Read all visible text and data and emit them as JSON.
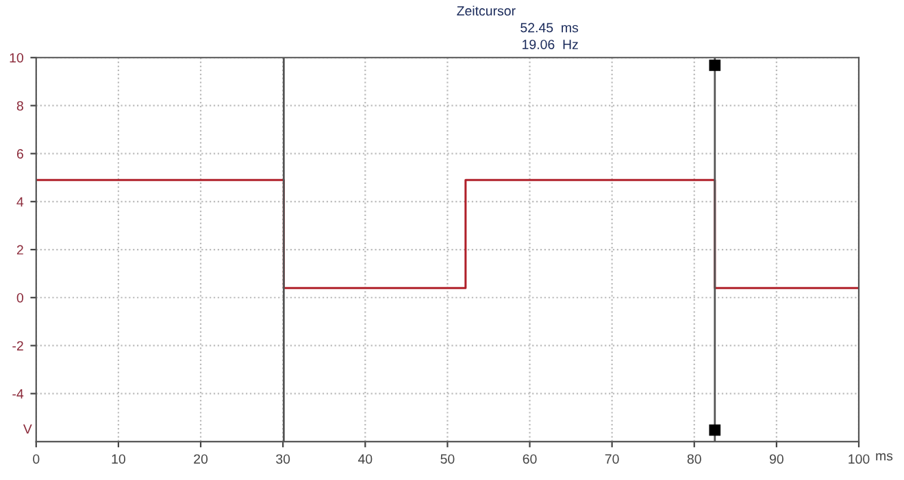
{
  "chart_data": {
    "type": "line",
    "xlabel": "ms",
    "ylabel": "V",
    "annotations": [
      "Zeitcursor",
      "52.45  ms",
      "19.06  Hz"
    ],
    "series": [
      {
        "color": "#b0202a",
        "x": [
          0,
          30.1,
          30.1,
          52.2,
          52.2,
          82.5,
          82.5,
          100
        ],
        "values": [
          4.9,
          4.9,
          0.4,
          0.4,
          4.9,
          4.9,
          0.4,
          0.4
        ]
      }
    ],
    "xlim": [
      0,
      100
    ],
    "xticks": [
      0,
      10,
      20,
      30,
      40,
      50,
      60,
      70,
      80,
      90,
      100
    ],
    "ylim": [
      -6,
      10
    ],
    "yticks": [
      -4,
      -2,
      0,
      2,
      4,
      6,
      8,
      10
    ],
    "ref_lines": [
      {
        "axis": "x",
        "value": 30.1,
        "color": "#555555"
      },
      {
        "axis": "x",
        "value": 82.5,
        "color": "#555555"
      }
    ],
    "grid": true,
    "legend": false,
    "marker": "none",
    "line_style": "solid"
  }
}
